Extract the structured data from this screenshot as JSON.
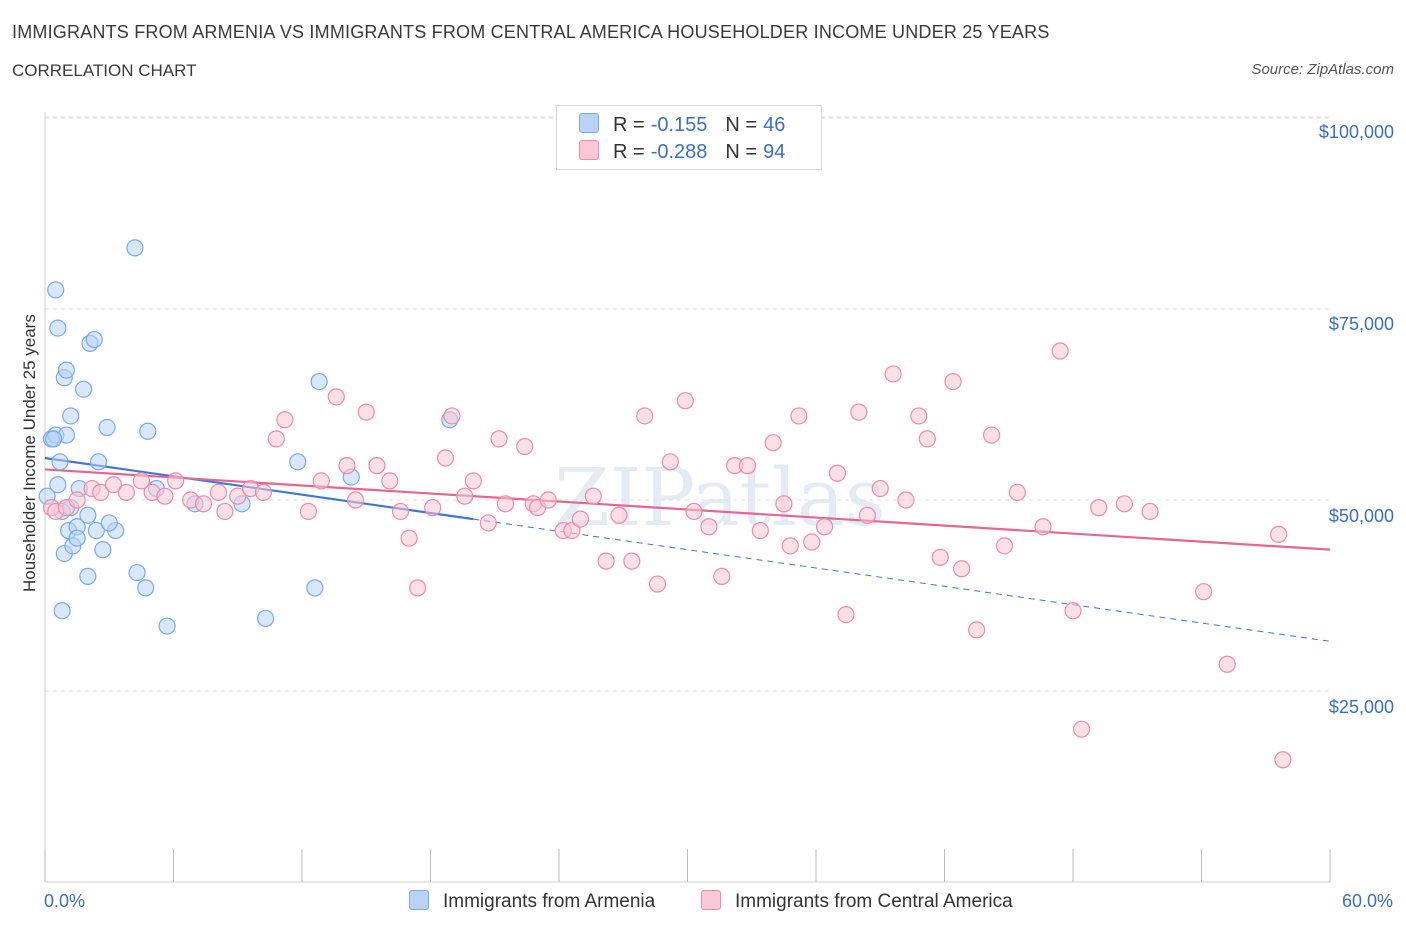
{
  "title": "IMMIGRANTS FROM ARMENIA VS IMMIGRANTS FROM CENTRAL AMERICA HOUSEHOLDER INCOME UNDER 25 YEARS",
  "subtitle": "CORRELATION CHART",
  "source": "Source: ZipAtlas.com",
  "watermark": "ZIPatlas",
  "legend": {
    "rows": [
      {
        "r_label": "R =",
        "r_value": "-0.155",
        "n_label": "N =",
        "n_value": "46",
        "color": "#a9c8f0"
      },
      {
        "r_label": "R =",
        "r_value": "-0.288",
        "n_label": "N =",
        "n_value": "94",
        "color": "#f7b8c9"
      }
    ]
  },
  "chart_data": {
    "type": "scatter",
    "title": "IMMIGRANTS FROM ARMENIA VS IMMIGRANTS FROM CENTRAL AMERICA HOUSEHOLDER INCOME UNDER 25 YEARS",
    "xlabel": "",
    "ylabel": "Householder Income Under 25 years",
    "x_tick_labels": [
      "0.0%",
      "60.0%"
    ],
    "y_tick_labels": [
      "$100,000",
      "$75,000",
      "$50,000",
      "$25,000"
    ],
    "y_ticks": [
      100000,
      75000,
      50000,
      25000
    ],
    "xlim": [
      0,
      60
    ],
    "ylim": [
      0,
      100000
    ],
    "grid": true,
    "legend_position": "top-center",
    "series": [
      {
        "name": "Immigrants from Armenia",
        "color": "#7aaae6",
        "fill": "#b8d3f4",
        "points": [
          [
            0.1,
            50500
          ],
          [
            0.3,
            58000
          ],
          [
            0.5,
            58500
          ],
          [
            0.6,
            72500
          ],
          [
            0.5,
            77500
          ],
          [
            0.8,
            48500
          ],
          [
            0.7,
            55000
          ],
          [
            0.9,
            66000
          ],
          [
            1.0,
            67000
          ],
          [
            1.2,
            61000
          ],
          [
            0.9,
            43000
          ],
          [
            1.1,
            46000
          ],
          [
            1.3,
            44000
          ],
          [
            1.5,
            46500
          ],
          [
            0.8,
            35500
          ],
          [
            1.6,
            51500
          ],
          [
            1.8,
            64500
          ],
          [
            2.0,
            40000
          ],
          [
            2.1,
            70500
          ],
          [
            2.3,
            71000
          ],
          [
            2.4,
            46000
          ],
          [
            2.5,
            55000
          ],
          [
            2.7,
            43500
          ],
          [
            2.9,
            59500
          ],
          [
            3.3,
            46000
          ],
          [
            4.2,
            83000
          ],
          [
            4.3,
            40500
          ],
          [
            4.7,
            38500
          ],
          [
            4.8,
            59000
          ],
          [
            5.2,
            51500
          ],
          [
            5.7,
            33500
          ],
          [
            7.0,
            49500
          ],
          [
            9.2,
            49500
          ],
          [
            10.3,
            34500
          ],
          [
            11.8,
            55000
          ],
          [
            12.6,
            38500
          ],
          [
            12.8,
            65500
          ],
          [
            14.3,
            53000
          ],
          [
            18.9,
            60500
          ],
          [
            1.0,
            58500
          ],
          [
            0.4,
            58000
          ],
          [
            1.5,
            45000
          ],
          [
            2.0,
            48000
          ],
          [
            3.0,
            47000
          ],
          [
            1.2,
            49000
          ],
          [
            0.6,
            52000
          ]
        ],
        "trend": {
          "x": [
            0,
            20
          ],
          "y": [
            55500,
            47500
          ],
          "dashed_to": [
            60,
            31500
          ]
        }
      },
      {
        "name": "Immigrants from Central America",
        "color": "#ef8aa8",
        "fill": "#f9c7d5",
        "points": [
          [
            0.3,
            49000
          ],
          [
            0.5,
            48500
          ],
          [
            1.0,
            49000
          ],
          [
            1.5,
            50000
          ],
          [
            2.2,
            51500
          ],
          [
            2.6,
            51000
          ],
          [
            3.2,
            52000
          ],
          [
            3.8,
            51000
          ],
          [
            4.5,
            52500
          ],
          [
            5.0,
            51000
          ],
          [
            5.6,
            50500
          ],
          [
            6.1,
            52500
          ],
          [
            6.8,
            50000
          ],
          [
            7.4,
            49500
          ],
          [
            8.1,
            51000
          ],
          [
            8.4,
            48500
          ],
          [
            9.0,
            50500
          ],
          [
            9.6,
            51500
          ],
          [
            10.2,
            51000
          ],
          [
            10.8,
            58000
          ],
          [
            11.2,
            60500
          ],
          [
            12.3,
            48500
          ],
          [
            12.9,
            52500
          ],
          [
            13.6,
            63500
          ],
          [
            14.1,
            54500
          ],
          [
            14.5,
            50000
          ],
          [
            15.0,
            61500
          ],
          [
            15.5,
            54500
          ],
          [
            16.1,
            52500
          ],
          [
            16.6,
            48500
          ],
          [
            17.0,
            45000
          ],
          [
            17.4,
            38500
          ],
          [
            18.1,
            49000
          ],
          [
            18.7,
            55500
          ],
          [
            19.0,
            61000
          ],
          [
            19.6,
            50500
          ],
          [
            20.0,
            52500
          ],
          [
            20.7,
            47000
          ],
          [
            21.2,
            58000
          ],
          [
            21.5,
            49500
          ],
          [
            22.4,
            57000
          ],
          [
            22.8,
            49500
          ],
          [
            23.0,
            49000
          ],
          [
            23.5,
            50000
          ],
          [
            24.2,
            46000
          ],
          [
            24.6,
            46000
          ],
          [
            25.0,
            47500
          ],
          [
            25.6,
            50500
          ],
          [
            26.2,
            42000
          ],
          [
            26.8,
            48000
          ],
          [
            27.4,
            42000
          ],
          [
            28.0,
            61000
          ],
          [
            28.6,
            39000
          ],
          [
            29.2,
            55000
          ],
          [
            29.9,
            63000
          ],
          [
            30.3,
            48500
          ],
          [
            31.0,
            46500
          ],
          [
            31.6,
            40000
          ],
          [
            32.2,
            54500
          ],
          [
            32.8,
            54500
          ],
          [
            33.4,
            46000
          ],
          [
            34.0,
            57500
          ],
          [
            34.5,
            49500
          ],
          [
            34.8,
            44000
          ],
          [
            35.2,
            61000
          ],
          [
            35.8,
            44500
          ],
          [
            36.4,
            46500
          ],
          [
            37.0,
            53500
          ],
          [
            37.4,
            35000
          ],
          [
            38.0,
            61500
          ],
          [
            38.4,
            48000
          ],
          [
            39.0,
            51500
          ],
          [
            39.6,
            66500
          ],
          [
            40.2,
            50000
          ],
          [
            40.8,
            61000
          ],
          [
            41.2,
            58000
          ],
          [
            41.8,
            42500
          ],
          [
            42.4,
            65500
          ],
          [
            42.8,
            41000
          ],
          [
            43.5,
            33000
          ],
          [
            44.2,
            58500
          ],
          [
            44.8,
            44000
          ],
          [
            45.4,
            51000
          ],
          [
            46.6,
            46500
          ],
          [
            47.4,
            69500
          ],
          [
            48.0,
            35500
          ],
          [
            48.4,
            20000
          ],
          [
            49.2,
            49000
          ],
          [
            50.4,
            49500
          ],
          [
            54.1,
            38000
          ],
          [
            57.6,
            45500
          ],
          [
            57.8,
            16000
          ],
          [
            51.6,
            48500
          ],
          [
            55.2,
            28500
          ]
        ],
        "trend": {
          "x": [
            0,
            60
          ],
          "y": [
            54000,
            43500
          ]
        }
      }
    ]
  }
}
